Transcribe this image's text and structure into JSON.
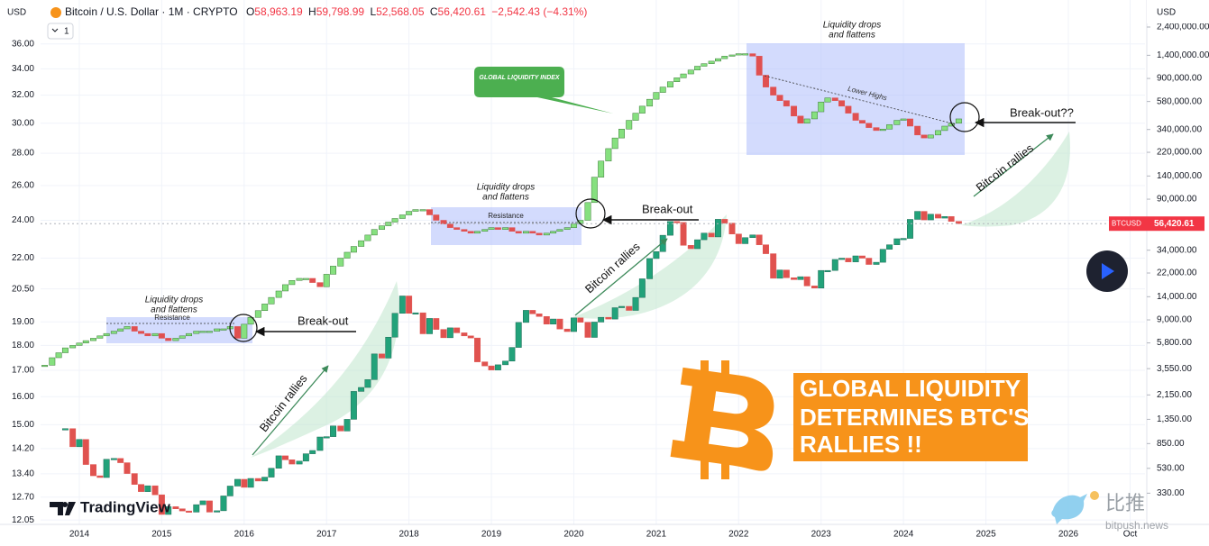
{
  "header": {
    "currency_left": "USD",
    "symbol": "Bitcoin / U.S. Dollar · 1M · CRYPTO",
    "ohlc": [
      {
        "key": "O",
        "value": "58,963.19"
      },
      {
        "key": "H",
        "value": "59,798.99"
      },
      {
        "key": "L",
        "value": "52,568.05"
      },
      {
        "key": "C",
        "value": "56,420.61"
      }
    ],
    "change": "−2,542.43 (−4.31%)",
    "interval": "1",
    "currency_right": "USD"
  },
  "branding": {
    "logo": "TradingView",
    "watermark": [
      "比推",
      "bitpush.news"
    ]
  },
  "chart_data": {
    "type": "candlestick",
    "log_scale": true,
    "grid": true,
    "x": [
      2013.58,
      2013.67,
      2013.75,
      2013.83,
      2013.92,
      2014.0,
      2014.08,
      2014.17,
      2014.25,
      2014.33,
      2014.42,
      2014.5,
      2014.58,
      2014.67,
      2014.75,
      2014.83,
      2014.92,
      2015.0,
      2015.08,
      2015.17,
      2015.25,
      2015.33,
      2015.42,
      2015.5,
      2015.58,
      2015.67,
      2015.75,
      2015.83,
      2015.92,
      2016.0,
      2016.08,
      2016.17,
      2016.25,
      2016.33,
      2016.42,
      2016.5,
      2016.58,
      2016.67,
      2016.75,
      2016.83,
      2016.92,
      2017.0,
      2017.08,
      2017.17,
      2017.25,
      2017.33,
      2017.42,
      2017.5,
      2017.58,
      2017.67,
      2017.75,
      2017.83,
      2017.92,
      2018.0,
      2018.08,
      2018.17,
      2018.25,
      2018.33,
      2018.42,
      2018.5,
      2018.58,
      2018.67,
      2018.75,
      2018.83,
      2018.92,
      2019.0,
      2019.08,
      2019.17,
      2019.25,
      2019.33,
      2019.42,
      2019.5,
      2019.58,
      2019.67,
      2019.75,
      2019.83,
      2019.92,
      2020.0,
      2020.08,
      2020.17,
      2020.25,
      2020.33,
      2020.42,
      2020.5,
      2020.58,
      2020.67,
      2020.75,
      2020.83,
      2020.92,
      2021.0,
      2021.08,
      2021.17,
      2021.25,
      2021.33,
      2021.42,
      2021.5,
      2021.58,
      2021.67,
      2021.75,
      2021.83,
      2021.92,
      2022.0,
      2022.08,
      2022.17,
      2022.25,
      2022.33,
      2022.42,
      2022.5,
      2022.58,
      2022.67,
      2022.75,
      2022.83,
      2022.92,
      2023.0,
      2023.08,
      2023.17,
      2023.25,
      2023.33,
      2023.42,
      2023.5,
      2023.58,
      2023.67,
      2023.75,
      2023.83,
      2023.92,
      2024.0,
      2024.08,
      2024.17,
      2024.25,
      2024.33,
      2024.42,
      2024.5,
      2024.58,
      2024.67
    ],
    "series": [
      {
        "name": "GLOBAL LIQUIDITY INDEX",
        "axis": "y",
        "color": "#86e07f",
        "down_color": "#e05050",
        "outline": "#3a7a36",
        "values": [
          17.2,
          17.5,
          17.7,
          17.9,
          18.0,
          18.1,
          18.2,
          18.3,
          18.4,
          18.5,
          18.6,
          18.7,
          18.8,
          18.6,
          18.5,
          18.4,
          18.5,
          18.3,
          18.2,
          18.3,
          18.4,
          18.5,
          18.6,
          18.6,
          18.6,
          18.7,
          18.7,
          18.8,
          18.3,
          18.9,
          19.2,
          19.5,
          19.8,
          20.1,
          20.4,
          20.7,
          20.9,
          21.0,
          21.0,
          20.8,
          20.6,
          21.2,
          21.6,
          22.0,
          22.3,
          22.6,
          22.9,
          23.2,
          23.5,
          23.7,
          23.9,
          24.1,
          24.3,
          24.5,
          24.6,
          24.6,
          24.3,
          24.0,
          23.8,
          23.6,
          23.5,
          23.4,
          23.3,
          23.4,
          23.5,
          23.6,
          23.5,
          23.6,
          23.4,
          23.3,
          23.4,
          23.3,
          23.2,
          23.3,
          23.4,
          23.5,
          23.6,
          23.8,
          24.0,
          25.0,
          26.5,
          27.5,
          28.3,
          29.0,
          29.6,
          30.2,
          30.7,
          31.2,
          31.7,
          32.2,
          32.6,
          33.0,
          33.3,
          33.6,
          33.9,
          34.2,
          34.4,
          34.6,
          34.8,
          35.0,
          35.1,
          35.2,
          35.2,
          35.0,
          33.5,
          32.6,
          32.0,
          31.6,
          31.2,
          30.5,
          30.0,
          30.3,
          30.8,
          31.5,
          31.8,
          31.6,
          31.2,
          30.7,
          30.2,
          30.0,
          29.7,
          29.5,
          29.6,
          29.9,
          30.2,
          30.3,
          29.8,
          29.2,
          29.0,
          29.2,
          29.5,
          29.8,
          30.0,
          30.3
        ]
      },
      {
        "name": "BTCUSD",
        "axis": "y2",
        "color": "#22a27a",
        "down_color": "#e0524f",
        "outline": "#1d6b55",
        "values": [
          null,
          null,
          null,
          1130,
          800,
          920,
          570,
          460,
          445,
          630,
          640,
          590,
          480,
          390,
          340,
          380,
          320,
          220,
          255,
          245,
          235,
          230,
          265,
          285,
          230,
          236,
          313,
          378,
          430,
          369,
          437,
          416,
          448,
          531,
          673,
          624,
          575,
          608,
          700,
          745,
          964,
          970,
          1190,
          1080,
          1350,
          2300,
          2480,
          2880,
          4700,
          4340,
          6470,
          10200,
          14200,
          10200,
          10300,
          6900,
          9250,
          7500,
          6400,
          7730,
          7030,
          6630,
          6370,
          4040,
          3740,
          3460,
          3820,
          4100,
          5320,
          8570,
          10800,
          10100,
          9600,
          8300,
          9150,
          7560,
          7200,
          9350,
          8600,
          6440,
          8630,
          9450,
          9140,
          11350,
          11650,
          10780,
          13800,
          19700,
          29000,
          33100,
          45200,
          58800,
          57700,
          37300,
          35000,
          41500,
          47100,
          43800,
          61300,
          57000,
          46300,
          38500,
          43200,
          45500,
          37700,
          31800,
          19900,
          23300,
          20100,
          19400,
          20500,
          17200,
          16500,
          23100,
          23100,
          28500,
          29200,
          27200,
          30500,
          29200,
          25900,
          27000,
          34600,
          37700,
          42300,
          42600,
          61200,
          71300,
          60600,
          67500,
          62700,
          64600,
          58900,
          56420.61
        ],
        "value_labels": [
          null,
          null,
          null,
          null,
          null,
          null,
          null,
          null,
          null,
          null,
          null,
          null,
          null,
          null,
          null,
          null,
          null,
          null,
          null,
          null,
          null,
          null,
          null,
          null,
          null,
          null,
          null,
          null,
          null,
          null,
          null,
          null,
          null,
          null,
          null,
          null,
          null,
          null,
          null,
          null,
          null,
          null,
          null,
          null,
          null,
          null,
          null,
          null,
          null,
          null,
          null,
          null,
          null,
          null,
          null,
          null,
          null,
          null,
          null,
          null,
          null,
          null,
          null,
          null,
          null,
          null,
          null,
          null,
          null,
          null,
          null,
          null,
          null,
          null,
          null,
          null,
          null,
          null,
          null,
          null,
          null,
          null,
          null,
          null,
          null,
          null,
          null,
          null,
          null,
          null,
          null,
          null,
          null,
          null,
          null,
          null,
          null,
          null,
          null,
          null,
          null,
          null,
          null,
          null,
          null,
          null,
          null,
          null,
          null,
          null,
          null,
          null,
          null,
          null,
          null,
          null,
          null,
          null,
          null,
          null,
          null,
          null,
          null,
          null,
          null,
          null,
          null,
          null,
          null,
          null,
          null,
          null,
          null,
          "56,420.61"
        ]
      }
    ],
    "xlim": [
      2013.53,
      2026.93
    ],
    "xticks": [
      2014,
      2015,
      2016,
      2017,
      2018,
      2019,
      2020,
      2021,
      2022,
      2023,
      2024,
      2025,
      2026,
      {
        "value": 2026.75,
        "label": "Oct"
      }
    ],
    "ylim": [
      11.93,
      38.05
    ],
    "yticks": [
      12.05,
      {
        "value": 12.7,
        "label": "12.70"
      },
      {
        "value": 13.4,
        "label": "13.40"
      },
      {
        "value": 14.2,
        "label": "14.20"
      },
      {
        "value": 15,
        "label": "15.00"
      },
      {
        "value": 16,
        "label": "16.00"
      },
      {
        "value": 17,
        "label": "17.00"
      },
      {
        "value": 18,
        "label": "18.00"
      },
      {
        "value": 19,
        "label": "19.00"
      },
      {
        "value": 20.5,
        "label": "20.50"
      },
      {
        "value": 22,
        "label": "22.00"
      },
      {
        "value": 24,
        "label": "24.00"
      },
      {
        "value": 26,
        "label": "26.00"
      },
      {
        "value": 28,
        "label": "28.00"
      },
      {
        "value": 30,
        "label": "30.00"
      },
      {
        "value": 32,
        "label": "32.00"
      },
      {
        "value": 34,
        "label": "34.00"
      },
      {
        "value": 36,
        "label": "36.00"
      }
    ],
    "y2lim": [
      182,
      2754000
    ],
    "y2ticks": [
      {
        "value": 330,
        "label": "330.00"
      },
      {
        "value": 530,
        "label": "530.00"
      },
      {
        "value": 850,
        "label": "850.00"
      },
      {
        "value": 1350,
        "label": "1,350.00"
      },
      {
        "value": 2150,
        "label": "2,150.00"
      },
      {
        "value": 3550,
        "label": "3,550.00"
      },
      {
        "value": 5800,
        "label": "5,800.00"
      },
      {
        "value": 9000,
        "label": "9,000.00"
      },
      {
        "value": 14000,
        "label": "14,000.00"
      },
      {
        "value": 22000,
        "label": "22,000.00"
      },
      {
        "value": 34000,
        "label": "34,000.00"
      },
      {
        "value": 90000,
        "label": "90,000.00"
      },
      {
        "value": 140000,
        "label": "140,000.00"
      },
      {
        "value": 220000,
        "label": "220,000.00"
      },
      {
        "value": 340000,
        "label": "340,000.00"
      },
      {
        "value": 580000,
        "label": "580,000.00"
      },
      {
        "value": 900000,
        "label": "900,000.00"
      },
      {
        "value": 1400000,
        "label": "1,400,000.00"
      },
      {
        "value": 2400000,
        "label": "2,400,000.00"
      }
    ],
    "annotations": [
      [
        "Liquidity drops",
        "and flattens"
      ],
      [
        "Resistance"
      ],
      [
        "Break-out"
      ],
      [
        "Bitcoin rallies"
      ],
      [
        "Liquidity drops",
        "and flattens"
      ],
      [
        "Resistance"
      ],
      [
        "Break-out"
      ],
      [
        "Bitcoin rallies"
      ],
      [
        "Liquidity drops",
        "and flattens"
      ],
      [
        "Lower Highs"
      ],
      [
        "Break-out??"
      ],
      [
        "Bitcoin rallies"
      ],
      [
        "GLOBAL LIQUIDITY",
        "DETERMINES BTC'S",
        "RALLIES !!"
      ]
    ]
  }
}
